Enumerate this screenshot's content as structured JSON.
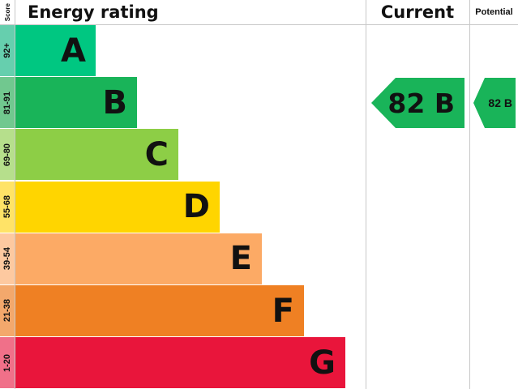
{
  "chart_data": {
    "type": "bar",
    "headers": {
      "score": "Score",
      "rating": "Energy rating",
      "current": "Current",
      "potential": "Potential"
    },
    "bands": [
      {
        "letter": "A",
        "range": "92+",
        "color": "#00c781",
        "light": "#66cfae"
      },
      {
        "letter": "B",
        "range": "81-91",
        "color": "#19b459",
        "light": "#71c88f"
      },
      {
        "letter": "C",
        "range": "69-80",
        "color": "#8dce46",
        "light": "#b6df8c"
      },
      {
        "letter": "D",
        "range": "55-68",
        "color": "#ffd500",
        "light": "#ffe367"
      },
      {
        "letter": "E",
        "range": "39-54",
        "color": "#fcaa65",
        "light": "#fdc9a0"
      },
      {
        "letter": "F",
        "range": "21-38",
        "color": "#ef8023",
        "light": "#f3a86c"
      },
      {
        "letter": "G",
        "range": "1-20",
        "color": "#e9153b",
        "light": "#f07089"
      }
    ],
    "current": {
      "value": 82,
      "band": "B",
      "label": "82 B",
      "color": "#19b459"
    },
    "potential": {
      "value": 82,
      "band": "B",
      "label": "82 B",
      "color": "#19b459"
    }
  }
}
